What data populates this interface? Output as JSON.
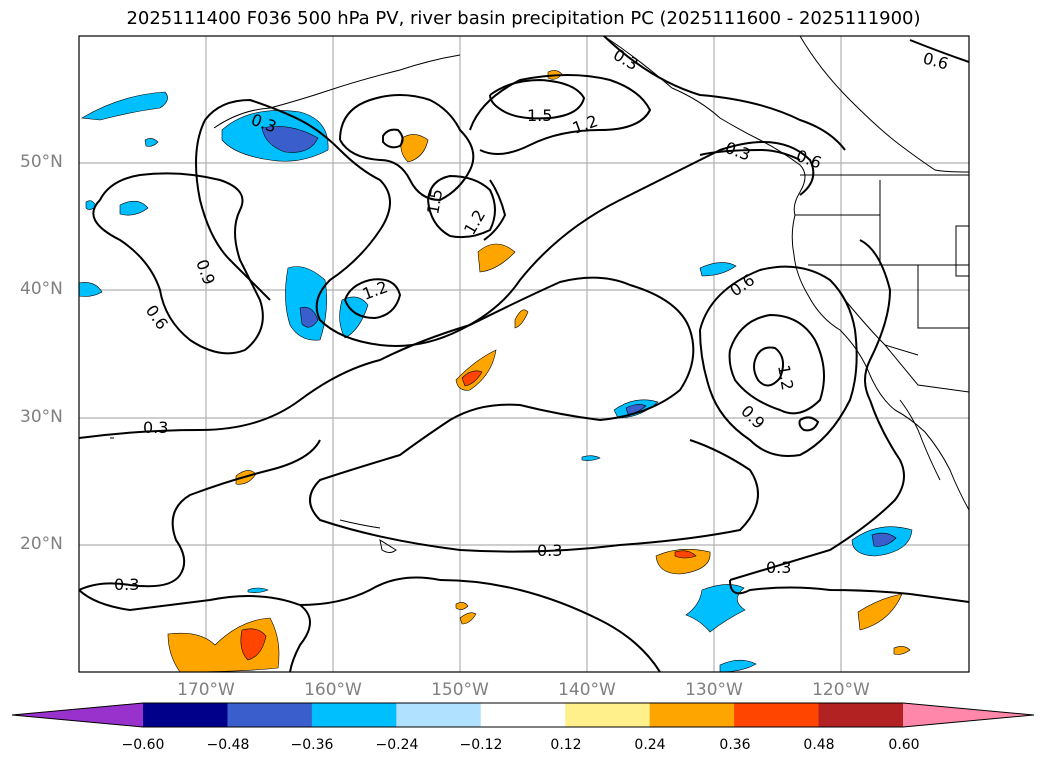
{
  "title": "2025111400 F036 500 hPa PV, river basin precipitation PC (2025111600 - 2025111900)",
  "lat_labels": [
    "50°N",
    "40°N",
    "30°N",
    "20°N"
  ],
  "lon_labels": [
    "170°W",
    "160°W",
    "150°W",
    "140°W",
    "130°W",
    "120°W"
  ],
  "contour_labels": [
    "0.3",
    "0.3",
    "0.3",
    "0.3",
    "0.6",
    "0.6",
    "0.6",
    "0.6",
    "0.9",
    "0.9",
    "1.2",
    "1.2",
    "1.2",
    "1.2",
    "1.5",
    "1.5",
    "0.3",
    "0.3",
    "0.3"
  ],
  "colorbar": {
    "ticks": [
      "−0.60",
      "−0.48",
      "−0.36",
      "−0.24",
      "−0.12",
      "0.12",
      "0.24",
      "0.36",
      "0.48",
      "0.60"
    ],
    "colors": [
      "#9932cc",
      "#00008b",
      "#3a5fcd",
      "#00bfff",
      "#b0e2ff",
      "#ffffff",
      "#fff08c",
      "#ffa500",
      "#ff4500",
      "#b22222",
      "#ff88aa"
    ]
  }
}
